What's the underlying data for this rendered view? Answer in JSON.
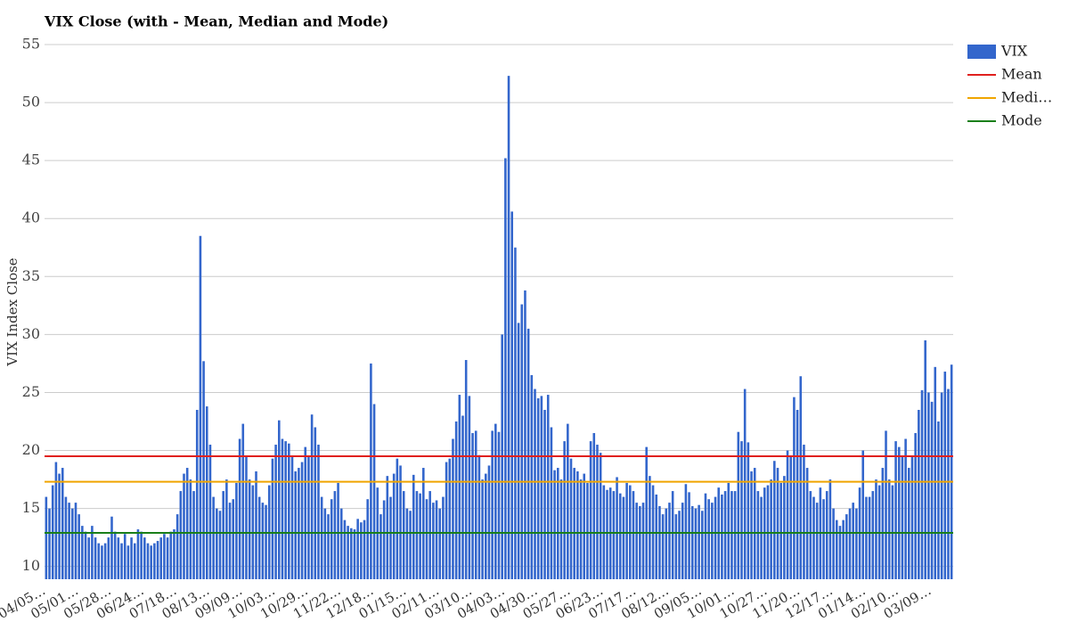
{
  "chart_data": {
    "type": "bar",
    "title": "VIX Close (with - Mean, Median and Mode)",
    "y_label": "VIX Index Close",
    "ylim": [
      8.9,
      55
    ],
    "yticks": [
      10,
      15,
      20,
      25,
      30,
      35,
      40,
      45,
      50,
      55
    ],
    "grid": true,
    "legend": "right",
    "categories": [
      "04/05…",
      null,
      null,
      null,
      null,
      null,
      null,
      null,
      null,
      null,
      "05/01…",
      null,
      null,
      null,
      null,
      null,
      null,
      null,
      null,
      null,
      "05/28…",
      null,
      null,
      null,
      null,
      null,
      null,
      null,
      null,
      null,
      "06/24…",
      null,
      null,
      null,
      null,
      null,
      null,
      null,
      null,
      null,
      "07/18…",
      null,
      null,
      null,
      null,
      null,
      null,
      null,
      null,
      null,
      "08/13…",
      null,
      null,
      null,
      null,
      null,
      null,
      null,
      null,
      null,
      "09/09…",
      null,
      null,
      null,
      null,
      null,
      null,
      null,
      null,
      null,
      "10/03…",
      null,
      null,
      null,
      null,
      null,
      null,
      null,
      null,
      null,
      "10/29…",
      null,
      null,
      null,
      null,
      null,
      null,
      null,
      null,
      null,
      "11/22…",
      null,
      null,
      null,
      null,
      null,
      null,
      null,
      null,
      null,
      "12/18…",
      null,
      null,
      null,
      null,
      null,
      null,
      null,
      null,
      null,
      "01/15…",
      null,
      null,
      null,
      null,
      null,
      null,
      null,
      null,
      null,
      "02/11…",
      null,
      null,
      null,
      null,
      null,
      null,
      null,
      null,
      null,
      "03/10…",
      null,
      null,
      null,
      null,
      null,
      null,
      null,
      null,
      null,
      "04/03…",
      null,
      null,
      null,
      null,
      null,
      null,
      null,
      null,
      null,
      "04/30…",
      null,
      null,
      null,
      null,
      null,
      null,
      null,
      null,
      null,
      "05/27…",
      null,
      null,
      null,
      null,
      null,
      null,
      null,
      null,
      null,
      "06/23…",
      null,
      null,
      null,
      null,
      null,
      null,
      null,
      null,
      null,
      "07/17…",
      null,
      null,
      null,
      null,
      null,
      null,
      null,
      null,
      null,
      "08/12…",
      null,
      null,
      null,
      null,
      null,
      null,
      null,
      null,
      null,
      "09/05…",
      null,
      null,
      null,
      null,
      null,
      null,
      null,
      null,
      null,
      "10/01…",
      null,
      null,
      null,
      null,
      null,
      null,
      null,
      null,
      null,
      "10/27…",
      null,
      null,
      null,
      null,
      null,
      null,
      null,
      null,
      null,
      "11/20…",
      null,
      null,
      null,
      null,
      null,
      null,
      null,
      null,
      null,
      "12/17…",
      null,
      null,
      null,
      null,
      null,
      null,
      null,
      null,
      null,
      "01/14…",
      null,
      null,
      null,
      null,
      null,
      null,
      null,
      null,
      null,
      "02/10…",
      null,
      null,
      null,
      null,
      null,
      null,
      null,
      null,
      null,
      "03/09…",
      null,
      null,
      null,
      null,
      null,
      null
    ],
    "series": [
      {
        "name": "VIX",
        "color": "#3366cc",
        "values": [
          16,
          15,
          17,
          19,
          18,
          18.5,
          16,
          15.5,
          15,
          15.5,
          14.5,
          13.5,
          13,
          12.5,
          13.5,
          12.5,
          12,
          11.8,
          12,
          12.5,
          14.3,
          13,
          12.5,
          12,
          12.8,
          11.8,
          12.5,
          12,
          13.2,
          13,
          12.5,
          12,
          11.8,
          12,
          12.2,
          12.5,
          12.8,
          12.5,
          13,
          13.2,
          14.5,
          16.5,
          18,
          18.5,
          17.5,
          16.5,
          23.5,
          38.5,
          27.7,
          23.8,
          20.5,
          16,
          15,
          14.8,
          16.5,
          17.5,
          15.5,
          15.8,
          17.2,
          21,
          22.3,
          19.5,
          17.5,
          17,
          18.2,
          16,
          15.5,
          15.3,
          17,
          19.3,
          20.5,
          22.6,
          21,
          20.8,
          20.6,
          19.5,
          18.2,
          18.5,
          19,
          20.3,
          19.5,
          23.1,
          22,
          20.5,
          16,
          15,
          14.5,
          15.8,
          16.5,
          17.2,
          15,
          14,
          13.5,
          13.3,
          13.2,
          14.1,
          13.8,
          14,
          15.8,
          27.5,
          24,
          16.8,
          14.5,
          15.7,
          17.8,
          16,
          18,
          19.3,
          18.7,
          16.5,
          15,
          14.8,
          17.9,
          16.5,
          16.3,
          18.5,
          15.8,
          16.5,
          15.5,
          15.7,
          15,
          16,
          19,
          19.3,
          21,
          22.5,
          24.8,
          23,
          27.8,
          24.7,
          21.5,
          21.7,
          19.6,
          17.5,
          18,
          18.7,
          21.7,
          22.3,
          21.6,
          30,
          45.2,
          52.3,
          40.6,
          37.5,
          31,
          32.6,
          33.8,
          30.5,
          26.5,
          25.3,
          24.5,
          24.7,
          23.5,
          24.8,
          22,
          18.3,
          18.5,
          17.5,
          20.8,
          22.3,
          19.3,
          18.5,
          18.2,
          17.5,
          18,
          17.2,
          20.8,
          21.5,
          20.5,
          19.8,
          17,
          16.6,
          16.8,
          16.5,
          17.7,
          16.3,
          16,
          17.2,
          17,
          16.5,
          15.5,
          15.2,
          15.5,
          20.3,
          17.8,
          17,
          16.2,
          15.2,
          14.5,
          15,
          15.5,
          16.5,
          14.5,
          14.8,
          15.5,
          17.1,
          16.4,
          15.2,
          15,
          15.3,
          14.8,
          16.3,
          15.8,
          15.5,
          16,
          16.8,
          16.2,
          16.5,
          17.2,
          16.5,
          16.5,
          21.6,
          20.8,
          25.3,
          20.7,
          18.2,
          18.5,
          16.5,
          16,
          16.8,
          17,
          17.5,
          19.1,
          18.5,
          17.2,
          17.8,
          20,
          19.5,
          24.6,
          23.5,
          26.4,
          20.5,
          18.5,
          16.5,
          16,
          15.5,
          16.8,
          15.8,
          16.5,
          17.5,
          15,
          14,
          13.5,
          14,
          14.5,
          15,
          15.5,
          15,
          16.8,
          20,
          16,
          16,
          16.5,
          17.5,
          17,
          18.5,
          21.7,
          17.5,
          17,
          20.8,
          20.3,
          19.5,
          21,
          18.5,
          19.5,
          21.5,
          23.5,
          25.2,
          29.5,
          25,
          24.2,
          27.2,
          22.5,
          25,
          26.8,
          25.3,
          27.4
        ]
      }
    ],
    "reference_lines": [
      {
        "name": "Mean",
        "color": "#e0201e",
        "value": 19.5
      },
      {
        "name": "Medi…",
        "color": "#f0a500",
        "value": 17.3
      },
      {
        "name": "Mode",
        "color": "#1a7f1a",
        "value": 12.9
      }
    ]
  }
}
